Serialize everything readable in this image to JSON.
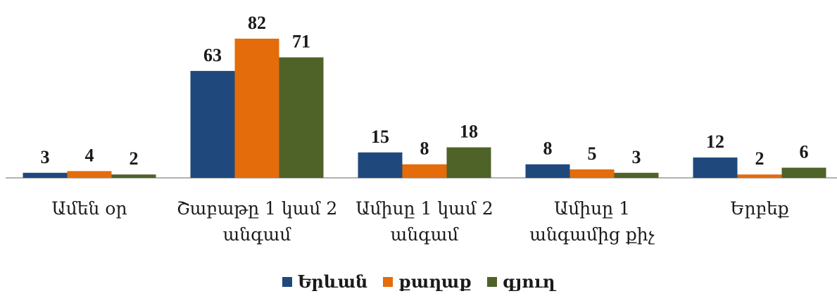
{
  "chart_data": {
    "type": "bar",
    "categories": [
      "Ամեն օր",
      "Շաբաթը 1 կամ 2 անգամ",
      "Ամիսը 1 կամ 2 անգամ",
      "Ամիսը 1 անգամից քիչ",
      "Երբեք"
    ],
    "series": [
      {
        "name": "Երևան",
        "color": "#1f497d",
        "values": [
          3,
          63,
          15,
          8,
          12
        ]
      },
      {
        "name": "քաղաք",
        "color": "#e46c0a",
        "values": [
          4,
          82,
          8,
          5,
          2
        ]
      },
      {
        "name": "գյուղ",
        "color": "#4f6228",
        "values": [
          2,
          71,
          18,
          3,
          6
        ]
      }
    ]
  }
}
